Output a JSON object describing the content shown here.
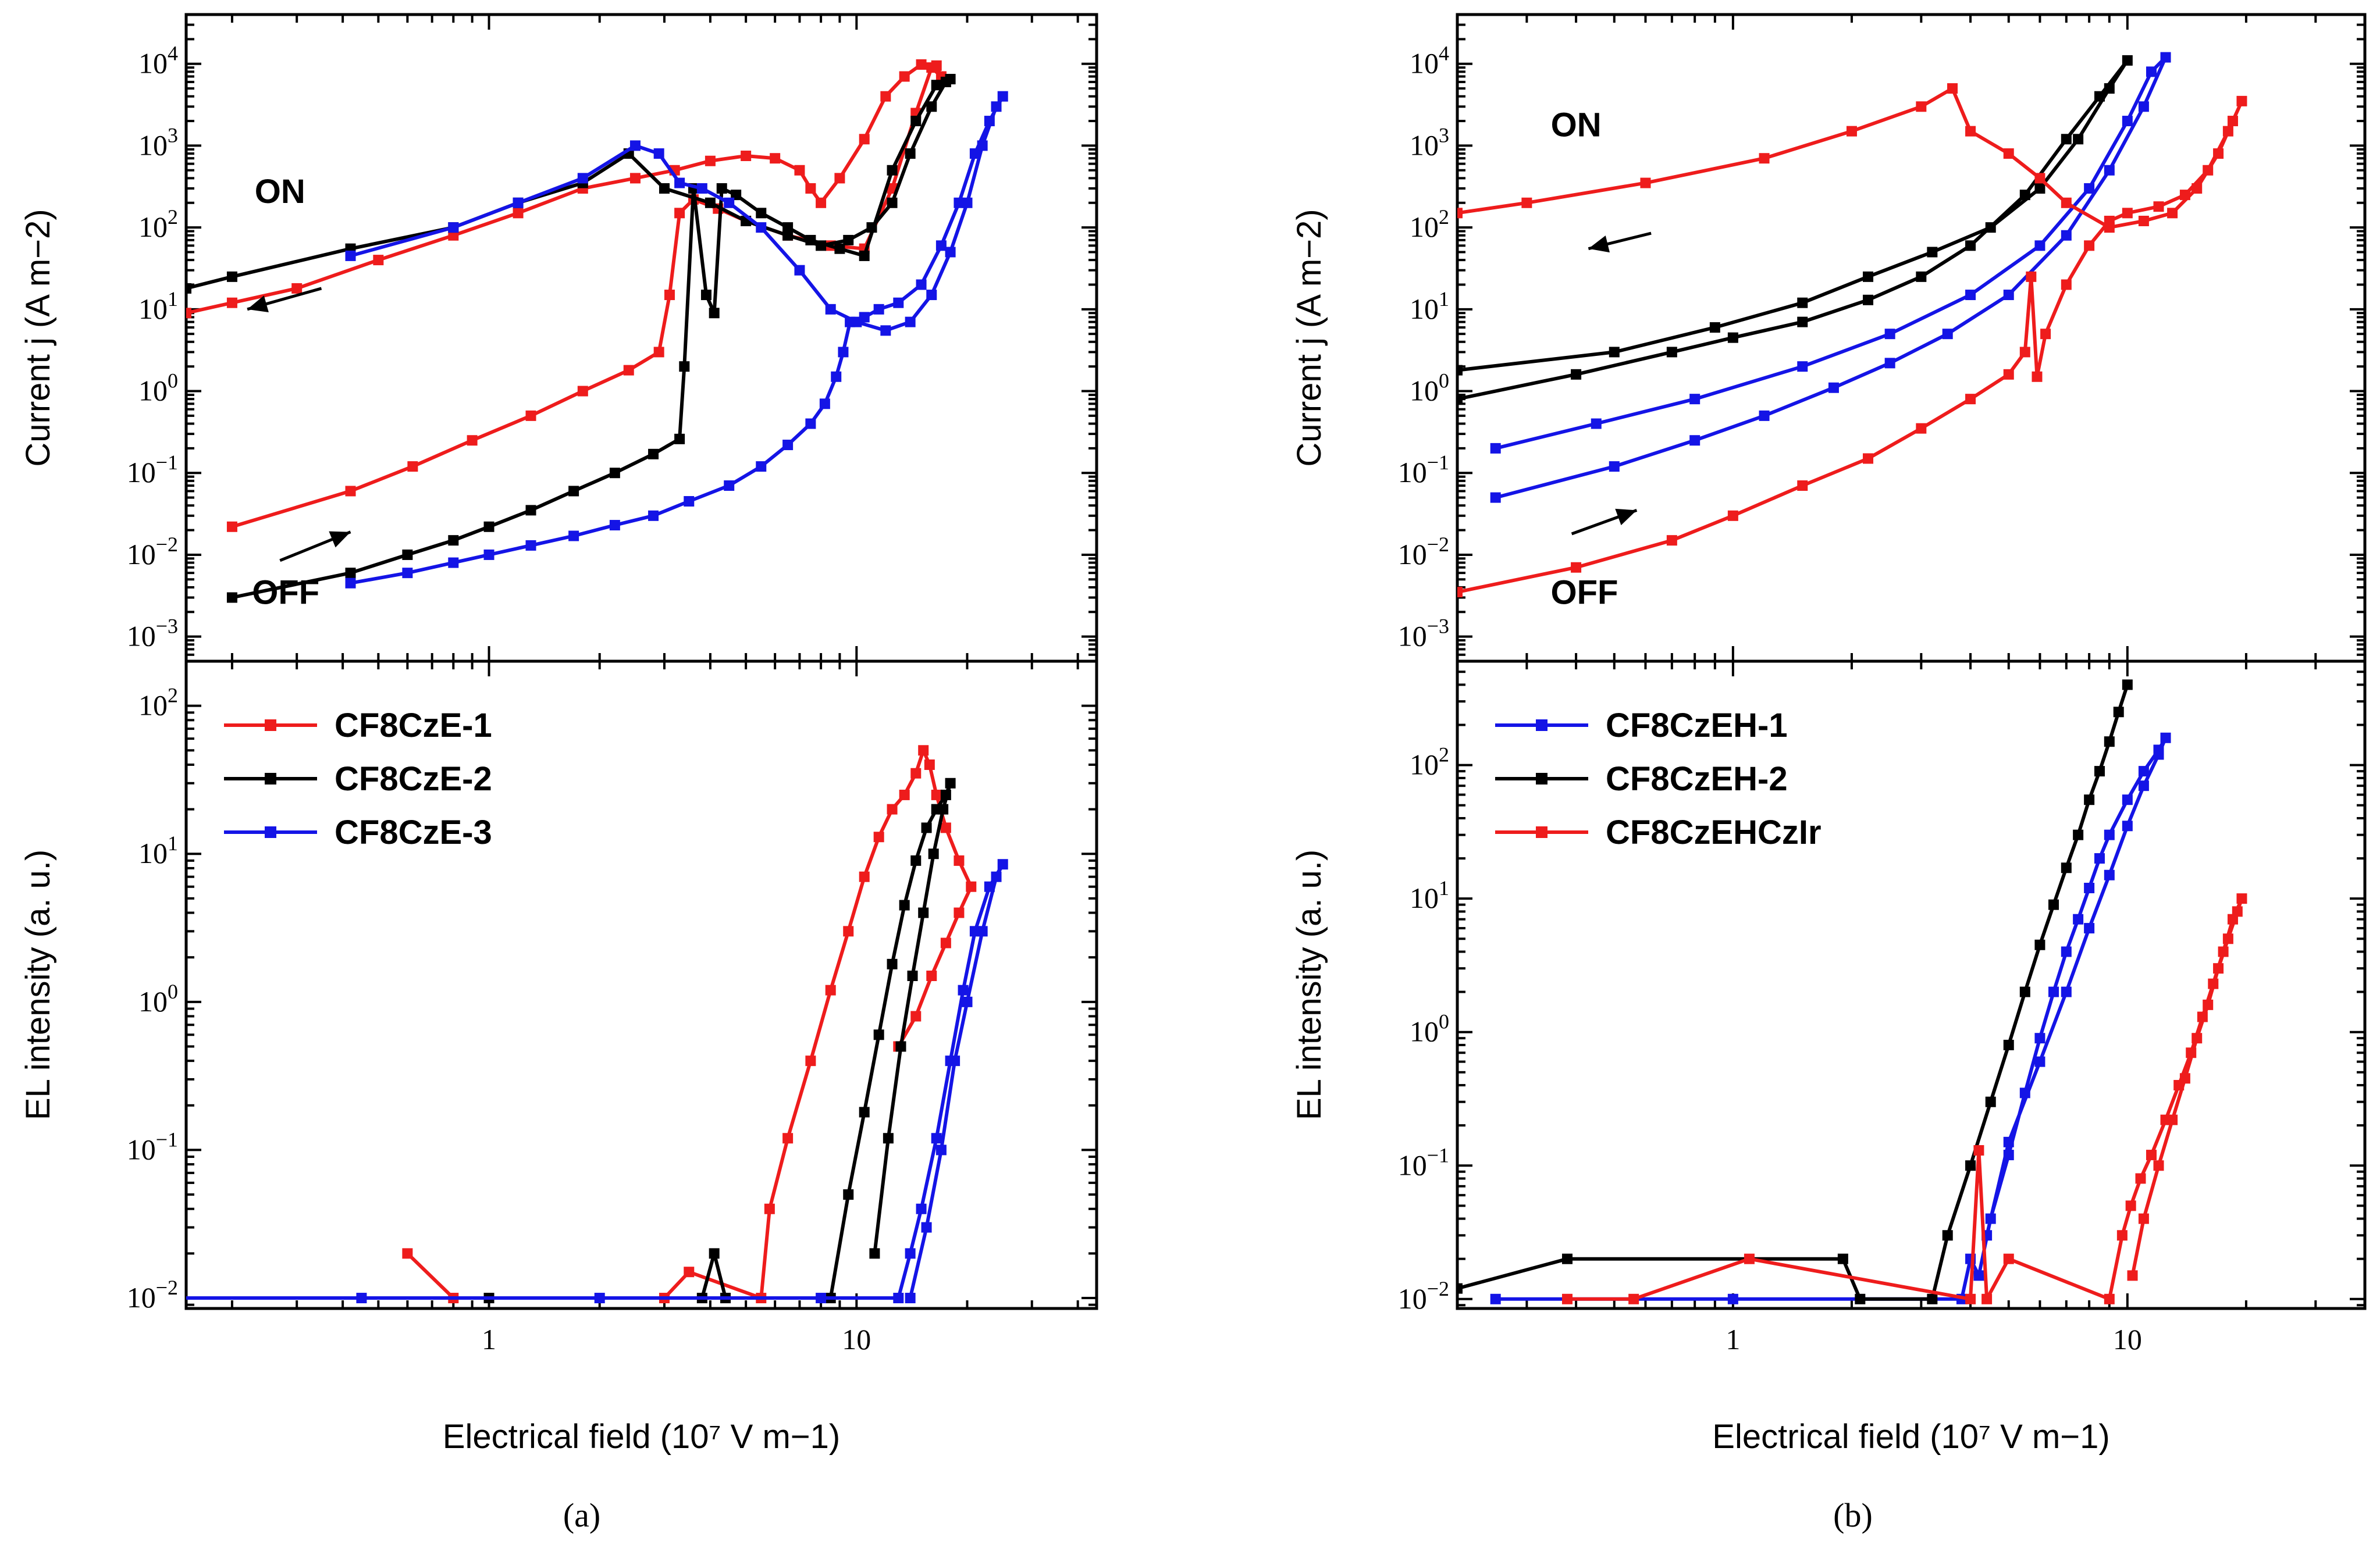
{
  "figure": {
    "panel_a_caption": "(a)",
    "panel_b_caption": "(b)"
  },
  "chart_data": [
    {
      "type": "line",
      "panel": "a-top",
      "x_scale": "log",
      "y_scale": "log",
      "xlim": [
        0.15,
        45
      ],
      "ylim": [
        0.0005,
        40000
      ],
      "ylabel": "Current j (A m−2)",
      "xticks": [
        1,
        10
      ],
      "yticks": [
        "10−3",
        "10−2",
        "10−1",
        "100",
        "101",
        "102",
        "103",
        "104"
      ],
      "annotations": [
        {
          "text": "ON",
          "x": 0.27,
          "y": 200
        },
        {
          "text": "OFF",
          "x": 0.28,
          "y": 0.0025
        }
      ],
      "arrows": [
        {
          "x1": 0.35,
          "y1": 18,
          "x2": 0.22,
          "y2": 10
        },
        {
          "x1": 0.27,
          "y1": 0.0085,
          "x2": 0.42,
          "y2": 0.019
        }
      ],
      "series": [
        {
          "name": "CF8CzE-1",
          "color": "#ee1c1c",
          "x": [
            0.2,
            0.42,
            0.62,
            0.9,
            1.3,
            1.8,
            2.4,
            2.9,
            3.1,
            3.3,
            3.6,
            4.2,
            5.0,
            6.5,
            8.5,
            10.5,
            12.5,
            14.5,
            16.0,
            17.0,
            16.5,
            15.0,
            13.5,
            12.0,
            10.5,
            9.0,
            8.0,
            7.5,
            7.0,
            6.0,
            5.0,
            4.0,
            3.2,
            2.5,
            1.8,
            1.2,
            0.8,
            0.5,
            0.3,
            0.2,
            0.15
          ],
          "y": [
            0.022,
            0.06,
            0.12,
            0.25,
            0.5,
            1.0,
            1.8,
            3,
            15,
            150,
            220,
            170,
            120,
            80,
            60,
            55,
            300,
            2500,
            9000,
            7000,
            9500,
            9800,
            7000,
            4000,
            1200,
            400,
            200,
            300,
            500,
            700,
            750,
            650,
            500,
            400,
            300,
            150,
            80,
            40,
            18,
            12,
            9
          ]
        },
        {
          "name": "CF8CzE-2",
          "color": "#000000",
          "x": [
            0.2,
            0.42,
            0.6,
            0.8,
            1.0,
            1.3,
            1.7,
            2.2,
            2.8,
            3.3,
            3.4,
            3.6,
            3.9,
            4.1,
            4.3,
            4.7,
            5.5,
            6.5,
            7.5,
            9.0,
            10.5,
            12.5,
            14.5,
            16.5,
            18.0,
            17.5,
            16.0,
            14.0,
            12.5,
            11.0,
            9.5,
            8.0,
            6.5,
            5.0,
            4.0,
            3.0,
            2.4,
            1.8,
            1.2,
            0.8,
            0.42,
            0.2,
            0.15
          ],
          "y": [
            0.003,
            0.006,
            0.01,
            0.015,
            0.022,
            0.035,
            0.06,
            0.1,
            0.17,
            0.26,
            2.0,
            300,
            15,
            9,
            300,
            250,
            150,
            100,
            70,
            55,
            45,
            500,
            2000,
            5500,
            6500,
            6000,
            3000,
            800,
            200,
            100,
            70,
            60,
            80,
            120,
            200,
            300,
            800,
            350,
            200,
            100,
            55,
            25,
            18
          ]
        },
        {
          "name": "CF8CzE-3",
          "color": "#1414e6",
          "x": [
            0.42,
            0.6,
            0.8,
            1.0,
            1.3,
            1.7,
            2.2,
            2.8,
            3.5,
            4.5,
            5.5,
            6.5,
            7.5,
            8.2,
            8.8,
            9.2,
            9.6,
            10.5,
            11.5,
            13.0,
            15.0,
            17.0,
            19.0,
            21.0,
            23.0,
            25.0,
            24.0,
            22.0,
            20.0,
            18.0,
            16.0,
            14.0,
            12.0,
            10.0,
            8.5,
            7.0,
            5.5,
            4.5,
            3.8,
            3.3,
            2.9,
            2.5,
            1.8,
            1.2,
            0.8,
            0.42
          ],
          "y": [
            0.0045,
            0.006,
            0.008,
            0.01,
            0.013,
            0.017,
            0.023,
            0.03,
            0.045,
            0.07,
            0.12,
            0.22,
            0.4,
            0.7,
            1.5,
            3.0,
            7.0,
            8.0,
            10.0,
            12.0,
            20.0,
            60.0,
            200.0,
            800.0,
            2000.0,
            4000.0,
            3000.0,
            1000.0,
            200.0,
            50.0,
            15.0,
            7.0,
            5.5,
            7.0,
            10.0,
            30.0,
            100.0,
            200.0,
            300.0,
            350.0,
            800.0,
            1000.0,
            400.0,
            200.0,
            100.0,
            45.0
          ]
        }
      ]
    },
    {
      "type": "line",
      "panel": "a-bottom",
      "x_scale": "log",
      "y_scale": "log",
      "xlim": [
        0.15,
        45
      ],
      "ylim": [
        0.0085,
        200
      ],
      "xlabel": "Electrical field (10⁷ V m−1)",
      "ylabel": "EL intensity (a. u.)",
      "xtick_labels": [
        "1",
        "10"
      ],
      "ytick_labels": [
        "10−2",
        "10−1",
        "100",
        "101",
        "102"
      ],
      "legend_position": "top-left",
      "series": [
        {
          "name": "CF8CzE-1",
          "color": "#ee1c1c",
          "x": [
            0.6,
            0.8,
            3.0,
            3.5,
            5.5,
            5.8,
            6.5,
            7.5,
            8.5,
            9.5,
            10.5,
            11.5,
            12.5,
            13.5,
            14.5,
            15.2,
            15.8,
            16.5,
            17.5,
            19.0,
            20.5,
            19.0,
            17.5,
            16.0,
            14.5,
            13.0
          ],
          "y": [
            0.02,
            0.01,
            0.01,
            0.015,
            0.01,
            0.04,
            0.12,
            0.4,
            1.2,
            3.0,
            7.0,
            13.0,
            20.0,
            25.0,
            35.0,
            50.0,
            40.0,
            25.0,
            15.0,
            9.0,
            6.0,
            4.0,
            2.5,
            1.5,
            0.8,
            0.5
          ]
        },
        {
          "name": "CF8CzE-2",
          "color": "#000000",
          "x": [
            1.0,
            3.8,
            4.1,
            4.4,
            8.5,
            9.5,
            10.5,
            11.5,
            12.5,
            13.5,
            14.5,
            15.5,
            16.5,
            17.5,
            18.0,
            17.2,
            16.2,
            15.2,
            14.2,
            13.2,
            12.2,
            11.2
          ],
          "y": [
            0.01,
            0.01,
            0.02,
            0.01,
            0.01,
            0.05,
            0.18,
            0.6,
            1.8,
            4.5,
            9.0,
            15.0,
            20.0,
            25.0,
            30.0,
            20.0,
            10.0,
            4.0,
            1.5,
            0.5,
            0.12,
            0.02
          ]
        },
        {
          "name": "CF8CzE-3",
          "color": "#1414e6",
          "x": [
            0.12,
            0.45,
            2.0,
            8.0,
            13.0,
            14.0,
            15.0,
            16.5,
            18.0,
            19.5,
            21.0,
            23.0,
            25.0,
            24.0,
            22.0,
            20.0,
            18.5,
            17.0,
            15.5,
            14.0
          ],
          "y": [
            0.01,
            0.01,
            0.01,
            0.01,
            0.01,
            0.02,
            0.04,
            0.12,
            0.4,
            1.2,
            3.0,
            6.0,
            8.5,
            7.0,
            3.0,
            1.0,
            0.4,
            0.1,
            0.03,
            0.01
          ]
        }
      ]
    },
    {
      "type": "line",
      "panel": "b-top",
      "x_scale": "log",
      "y_scale": "log",
      "xlim": [
        0.2,
        40
      ],
      "ylim": [
        0.0005,
        40000
      ],
      "ylabel": "Current j (A m−2)",
      "xticks": [
        1,
        10
      ],
      "yticks": [
        "10−3",
        "10−2",
        "10−1",
        "100",
        "101",
        "102",
        "103",
        "104"
      ],
      "annotations": [
        {
          "text": "ON",
          "x": 0.4,
          "y": 1300
        },
        {
          "text": "OFF",
          "x": 0.42,
          "y": 0.0025
        }
      ],
      "arrows": [
        {
          "x1": 0.62,
          "y1": 85,
          "x2": 0.43,
          "y2": 55
        },
        {
          "x1": 0.39,
          "y1": 0.018,
          "x2": 0.57,
          "y2": 0.035
        }
      ],
      "series": [
        {
          "name": "CF8CzEH-1",
          "color": "#1414e6",
          "x": [
            0.25,
            0.5,
            0.8,
            1.2,
            1.8,
            2.5,
            3.5,
            5.0,
            7.0,
            9.0,
            11.0,
            12.5,
            11.5,
            10.0,
            8.0,
            6.0,
            4.0,
            2.5,
            1.5,
            0.8,
            0.45,
            0.25
          ],
          "y": [
            0.05,
            0.12,
            0.25,
            0.5,
            1.1,
            2.2,
            5.0,
            15.0,
            80.0,
            500.0,
            3000.0,
            12000.0,
            8000.0,
            2000.0,
            300.0,
            60.0,
            15.0,
            5.0,
            2.0,
            0.8,
            0.4,
            0.2
          ]
        },
        {
          "name": "CF8CzEH-2",
          "color": "#000000",
          "x": [
            0.2,
            0.4,
            0.7,
            1.0,
            1.5,
            2.2,
            3.0,
            4.0,
            5.5,
            7.0,
            8.5,
            10.0,
            9.0,
            7.5,
            6.0,
            4.5,
            3.2,
            2.2,
            1.5,
            0.9,
            0.5,
            0.2
          ],
          "y": [
            0.8,
            1.6,
            3.0,
            4.5,
            7.0,
            13.0,
            25.0,
            60.0,
            250.0,
            1200.0,
            4000.0,
            11000.0,
            5000.0,
            1200.0,
            300.0,
            100.0,
            50.0,
            25.0,
            12.0,
            6.0,
            3.0,
            1.8
          ]
        },
        {
          "name": "CF8CzEHCzIr",
          "color": "#ee1c1c",
          "x": [
            0.2,
            0.4,
            0.7,
            1.0,
            1.5,
            2.2,
            3.0,
            4.0,
            5.0,
            5.5,
            5.7,
            5.9,
            6.2,
            7.0,
            8.0,
            9.0,
            10.0,
            12.0,
            14.0,
            16.0,
            18.0,
            19.5,
            18.5,
            17.0,
            15.0,
            13.0,
            11.0,
            9.0,
            7.0,
            6.0,
            5.0,
            4.0,
            3.6,
            3.0,
            2.0,
            1.2,
            0.6,
            0.3,
            0.2
          ],
          "y": [
            0.0035,
            0.007,
            0.015,
            0.03,
            0.07,
            0.15,
            0.35,
            0.8,
            1.6,
            3.0,
            25.0,
            1.5,
            5.0,
            20.0,
            60.0,
            120.0,
            150.0,
            180.0,
            250.0,
            500.0,
            1500.0,
            3500.0,
            2000.0,
            800.0,
            300.0,
            150.0,
            120.0,
            100.0,
            200.0,
            400.0,
            800.0,
            1500.0,
            5000.0,
            3000.0,
            1500.0,
            700.0,
            350.0,
            200.0,
            150.0
          ]
        }
      ]
    },
    {
      "type": "line",
      "panel": "b-bottom",
      "x_scale": "log",
      "y_scale": "log",
      "xlim": [
        0.2,
        40
      ],
      "ylim": [
        0.0085,
        600
      ],
      "xlabel": "Electrical field (10⁷ V m−1)",
      "ylabel": "EL intensity (a. u.)",
      "xtick_labels": [
        "1",
        "10"
      ],
      "ytick_labels": [
        "10−2",
        "10−1",
        "100",
        "101",
        "102"
      ],
      "legend_position": "top-left",
      "series": [
        {
          "name": "CF8CzEH-1",
          "color": "#1414e6",
          "x": [
            0.25,
            1.0,
            3.8,
            4.0,
            4.2,
            4.5,
            5.0,
            5.5,
            6.0,
            6.5,
            7.0,
            7.5,
            8.0,
            8.5,
            9.0,
            10.0,
            11.0,
            12.0,
            12.5,
            12.0,
            11.0,
            10.0,
            9.0,
            8.0,
            7.0,
            6.0,
            5.0,
            4.4
          ],
          "y": [
            0.01,
            0.01,
            0.01,
            0.02,
            0.015,
            0.04,
            0.12,
            0.35,
            0.9,
            2.0,
            4.0,
            7.0,
            12.0,
            20.0,
            30.0,
            55.0,
            90.0,
            130.0,
            160.0,
            120.0,
            70.0,
            35.0,
            15.0,
            6.0,
            2.0,
            0.6,
            0.15,
            0.03
          ]
        },
        {
          "name": "CF8CzEH-2",
          "color": "#000000",
          "x": [
            0.2,
            0.38,
            1.9,
            2.1,
            3.2,
            3.5,
            4.0,
            4.5,
            5.0,
            5.5,
            6.0,
            6.5,
            7.0,
            7.5,
            8.0,
            8.5,
            9.0,
            9.5,
            10.0
          ],
          "y": [
            0.012,
            0.02,
            0.02,
            0.01,
            0.01,
            0.03,
            0.1,
            0.3,
            0.8,
            2.0,
            4.5,
            9.0,
            17.0,
            30.0,
            55.0,
            90.0,
            150.0,
            250.0,
            400.0
          ]
        },
        {
          "name": "CF8CzEHCzIr",
          "color": "#ee1c1c",
          "x": [
            0.38,
            0.56,
            1.1,
            4.0,
            4.2,
            4.4,
            5.0,
            9.0,
            9.7,
            10.2,
            10.8,
            11.5,
            12.5,
            13.5,
            14.5,
            15.5,
            16.5,
            17.5,
            18.5,
            19.5,
            19.0,
            18.0,
            17.0,
            16.0,
            15.0,
            14.0,
            13.0,
            12.0,
            11.0,
            10.3
          ],
          "y": [
            0.01,
            0.01,
            0.02,
            0.01,
            0.13,
            0.01,
            0.02,
            0.01,
            0.03,
            0.05,
            0.08,
            0.12,
            0.22,
            0.4,
            0.7,
            1.3,
            2.3,
            4.0,
            7.0,
            10.0,
            8.0,
            5.0,
            3.0,
            1.6,
            0.9,
            0.45,
            0.22,
            0.1,
            0.04,
            0.015
          ]
        }
      ]
    }
  ]
}
